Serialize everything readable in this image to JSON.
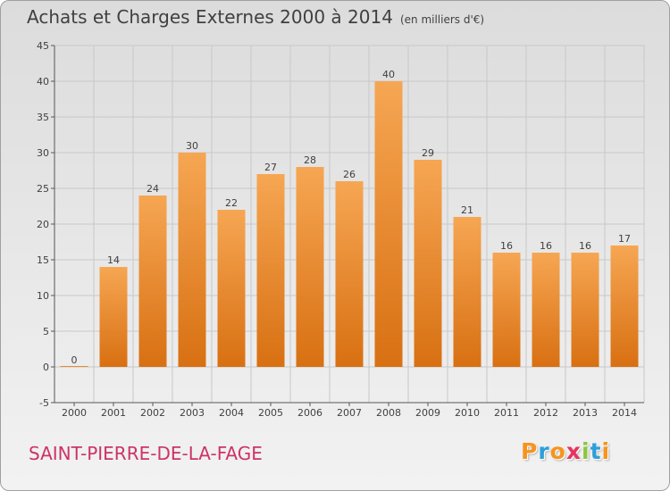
{
  "title": "Achats et Charges Externes 2000 à 2014",
  "subtitle": "(en milliers d'€)",
  "commune": "SAINT-PIERRE-DE-LA-FAGE",
  "logo": {
    "text": "Proxiti",
    "letters": [
      {
        "char": "P",
        "color": "#f7941d"
      },
      {
        "char": "r",
        "color": "#2e9fd8"
      },
      {
        "char": "o",
        "color": "#f7941d"
      },
      {
        "char": "x",
        "color": "#e8335e"
      },
      {
        "char": "i",
        "color": "#8cc63f"
      },
      {
        "char": "t",
        "color": "#2e9fd8"
      },
      {
        "char": "i",
        "color": "#f7941d"
      }
    ]
  },
  "colors": {
    "bar_top": "#f6a653",
    "bar_bottom": "#d87012",
    "grid": "#c8c8c8",
    "axis": "#555555",
    "text": "#404040",
    "commune": "#cc3366"
  },
  "chart_data": {
    "type": "bar",
    "categories": [
      "2000",
      "2001",
      "2002",
      "2003",
      "2004",
      "2005",
      "2006",
      "2007",
      "2008",
      "2009",
      "2010",
      "2011",
      "2012",
      "2013",
      "2014"
    ],
    "values": [
      0,
      14,
      24,
      30,
      22,
      27,
      28,
      26,
      40,
      29,
      21,
      16,
      16,
      16,
      17
    ],
    "data_labels": [
      "0",
      "14",
      "24",
      "30",
      "22",
      "27",
      "28",
      "26",
      "40",
      "29",
      "21",
      "16",
      "16",
      "16",
      "17"
    ],
    "y_ticks": [
      "-5",
      "0",
      "5",
      "10",
      "15",
      "20",
      "25",
      "30",
      "35",
      "40",
      "45"
    ],
    "ylim": [
      -5,
      45
    ],
    "grid": true,
    "legend": false
  }
}
